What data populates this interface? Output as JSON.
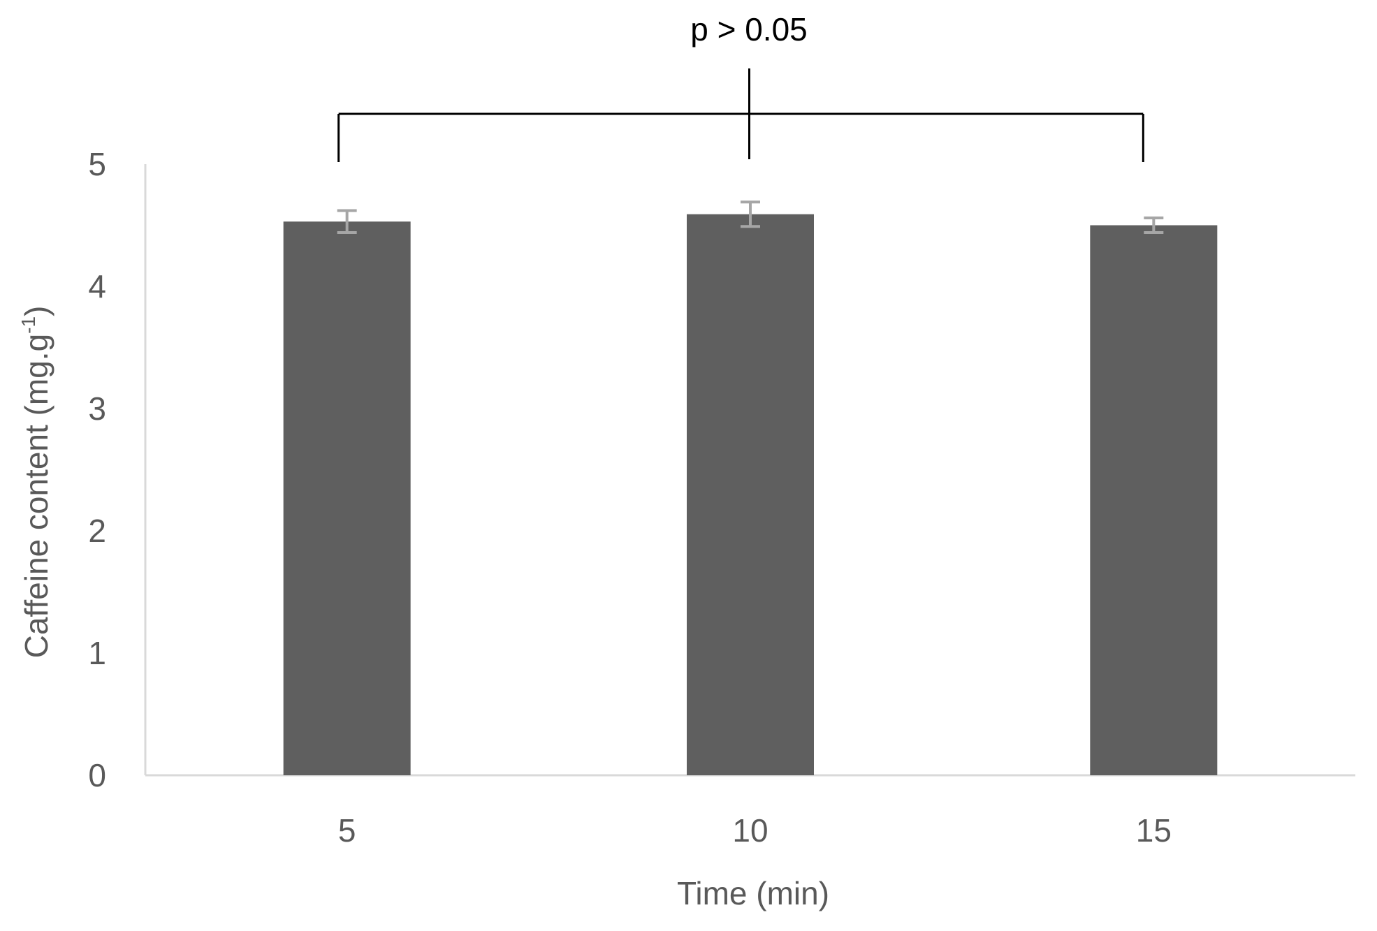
{
  "chart_data": {
    "type": "bar",
    "title": "",
    "xlabel": "Time (min)",
    "ylabel": "Caffeine content (mg.g",
    "ylabel_superscript": "-1",
    "ylabel_suffix": ")",
    "categories": [
      "5",
      "10",
      "15"
    ],
    "values": [
      4.53,
      4.59,
      4.5
    ],
    "error": [
      0.09,
      0.1,
      0.06
    ],
    "ylim": [
      0,
      5
    ],
    "yticks": [
      "0",
      "1",
      "2",
      "3",
      "4",
      "5"
    ],
    "grid": false,
    "legend": "none",
    "annotation": {
      "text": "p > 0.05",
      "bracket_from_category": "5",
      "bracket_to_category": "15"
    },
    "colors": {
      "bar": "#5f5f5f",
      "error_bar": "#a6a6a6",
      "axis": "#d9d9d9",
      "text": "#595959",
      "annotation": "#000000"
    }
  }
}
